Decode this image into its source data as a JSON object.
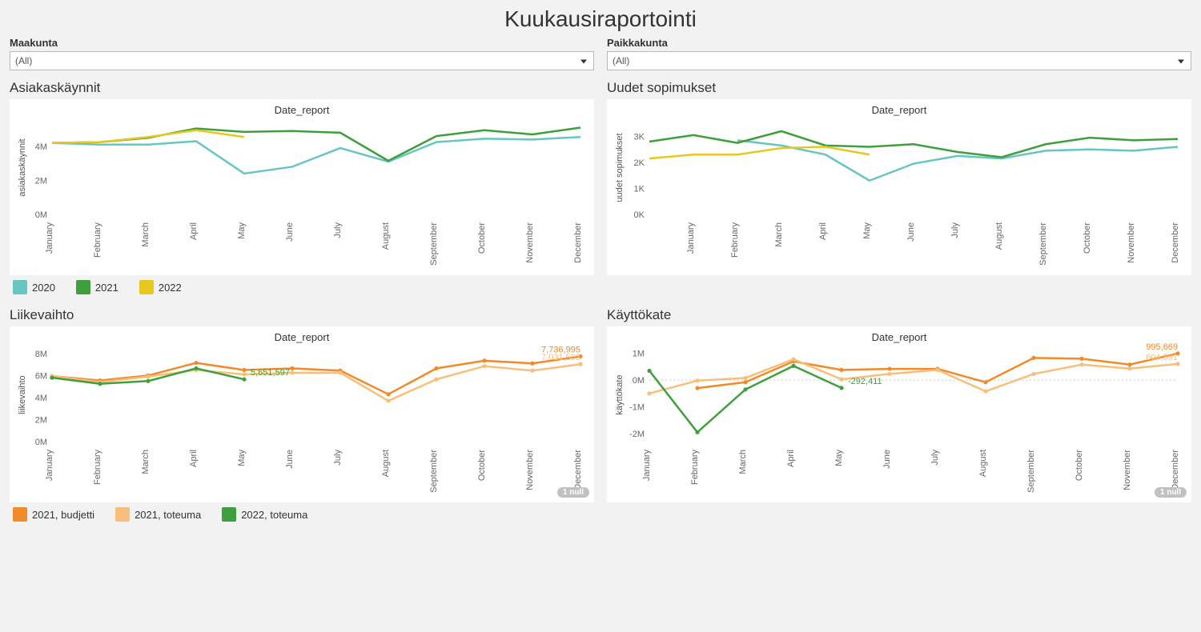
{
  "title": "Kuukausiraportointi",
  "filters": {
    "maakunta": {
      "label": "Maakunta",
      "value": "(All)"
    },
    "paikkakunta": {
      "label": "Paikkakunta",
      "value": "(All)"
    }
  },
  "months": [
    "January",
    "February",
    "March",
    "April",
    "May",
    "June",
    "July",
    "August",
    "September",
    "October",
    "November",
    "December"
  ],
  "colors": {
    "teal": "#67c5c2",
    "green": "#3ea03c",
    "yellow": "#e8c81e",
    "orange": "#f18a29",
    "peach": "#f7bf7b",
    "grid": "#dcdcdc",
    "axis": "#888"
  },
  "legend_top": [
    {
      "label": "2020",
      "color": "#67c5c2"
    },
    {
      "label": "2021",
      "color": "#3ea03c"
    },
    {
      "label": "2022",
      "color": "#e8c81e"
    }
  ],
  "legend_bottom": [
    {
      "label": "2021, budjetti",
      "color": "#f18a29"
    },
    {
      "label": "2021, toteuma",
      "color": "#f7bf7b"
    },
    {
      "label": "2022, toteuma",
      "color": "#3ea03c"
    }
  ],
  "charts": {
    "asiakaskaynnit": {
      "title": "Asiakaskäynnit",
      "axis_top": "Date_report",
      "y_title": "asiakaskäynnit",
      "y_ticks": [
        0,
        2000000,
        4000000
      ],
      "y_tick_labels": [
        "0M",
        "2M",
        "4M"
      ],
      "y_range": [
        0,
        5500000
      ],
      "series": [
        {
          "color": "#67c5c2",
          "width": 2.5,
          "values": [
            4200000,
            4100000,
            4100000,
            4300000,
            2400000,
            2800000,
            3900000,
            3100000,
            4250000,
            4450000,
            4400000,
            4550000
          ]
        },
        {
          "color": "#3ea03c",
          "width": 2.5,
          "values": [
            4200000,
            4250000,
            4500000,
            5050000,
            4850000,
            4900000,
            4800000,
            3150000,
            4600000,
            4950000,
            4700000,
            5100000
          ]
        },
        {
          "color": "#e8c81e",
          "width": 2.5,
          "values": [
            4200000,
            4250000,
            4550000,
            4950000,
            4550000,
            null,
            null,
            null,
            null,
            null,
            null,
            null
          ]
        }
      ]
    },
    "uudet": {
      "title": "Uudet sopimukset",
      "axis_top": "Date_report",
      "y_title": "uudet sopimukset",
      "y_ticks": [
        0,
        1000,
        2000,
        3000
      ],
      "y_tick_labels": [
        "0K",
        "1K",
        "2K",
        "3K"
      ],
      "y_range": [
        0,
        3600
      ],
      "series": [
        {
          "color": "#67c5c2",
          "width": 2.5,
          "values": [
            null,
            null,
            2850,
            2650,
            2300,
            1300,
            1950,
            2250,
            2150,
            2450,
            2500,
            2450,
            2600
          ]
        },
        {
          "color": "#3ea03c",
          "width": 2.5,
          "values": [
            2800,
            3050,
            2750,
            3200,
            2650,
            2600,
            2700,
            2400,
            2200,
            2700,
            2950,
            2850,
            2900
          ]
        },
        {
          "color": "#e8c81e",
          "width": 2.5,
          "values": [
            2150,
            2300,
            2300,
            2550,
            2600,
            2300,
            null,
            null,
            null,
            null,
            null,
            null,
            null
          ]
        }
      ],
      "x_count": 13
    },
    "liikevaihto": {
      "title": "Liikevaihto",
      "axis_top": "Date_report",
      "y_title": "liikevaihto",
      "y_ticks": [
        0,
        2000000,
        4000000,
        6000000,
        8000000
      ],
      "y_tick_labels": [
        "0M",
        "2M",
        "4M",
        "6M",
        "8M"
      ],
      "y_range": [
        0,
        8500000
      ],
      "null_badge": "1 null",
      "series": [
        {
          "color": "#f18a29",
          "width": 2.5,
          "marker": true,
          "values": [
            5950000,
            5550000,
            6000000,
            7150000,
            6500000,
            6650000,
            6450000,
            4300000,
            6650000,
            7350000,
            7100000,
            7736995
          ],
          "end_label": "7,736,995"
        },
        {
          "color": "#f7bf7b",
          "width": 2.5,
          "marker": true,
          "values": [
            5950000,
            5400000,
            5900000,
            6500000,
            6100000,
            6250000,
            6250000,
            3700000,
            5650000,
            6850000,
            6450000,
            7031503
          ],
          "end_label": "7,031,503"
        },
        {
          "color": "#3ea03c",
          "width": 2.5,
          "marker": true,
          "values": [
            5800000,
            5250000,
            5500000,
            6650000,
            5651597,
            null,
            null,
            null,
            null,
            null,
            null,
            null
          ],
          "end_label": "5,651,597",
          "end_label_pos": "last"
        }
      ]
    },
    "kayttokate": {
      "title": "Käyttökate",
      "axis_top": "Date_report",
      "y_title": "käyttökate",
      "y_ticks": [
        -2000000,
        -1000000,
        0,
        1000000
      ],
      "y_tick_labels": [
        "-2M",
        "-1M",
        "0M",
        "1M"
      ],
      "y_range": [
        -2300000,
        1200000
      ],
      "null_badge": "1 null",
      "zero_line": true,
      "series": [
        {
          "color": "#f18a29",
          "width": 2.5,
          "marker": true,
          "values": [
            null,
            -300000,
            -80000,
            700000,
            380000,
            420000,
            420000,
            -80000,
            830000,
            800000,
            580000,
            995669
          ],
          "end_label": "995,669"
        },
        {
          "color": "#f7bf7b",
          "width": 2.5,
          "marker": true,
          "values": [
            -500000,
            -20000,
            80000,
            780000,
            30000,
            230000,
            380000,
            -420000,
            230000,
            580000,
            430000,
            604891
          ],
          "end_label": "604,891"
        },
        {
          "color": "#3ea03c",
          "width": 2.5,
          "marker": true,
          "values": [
            350000,
            -1950000,
            -350000,
            530000,
            -292411,
            null,
            null,
            null,
            null,
            null,
            null,
            null
          ],
          "end_label": "-292,411",
          "end_label_pos": "last"
        }
      ]
    }
  }
}
